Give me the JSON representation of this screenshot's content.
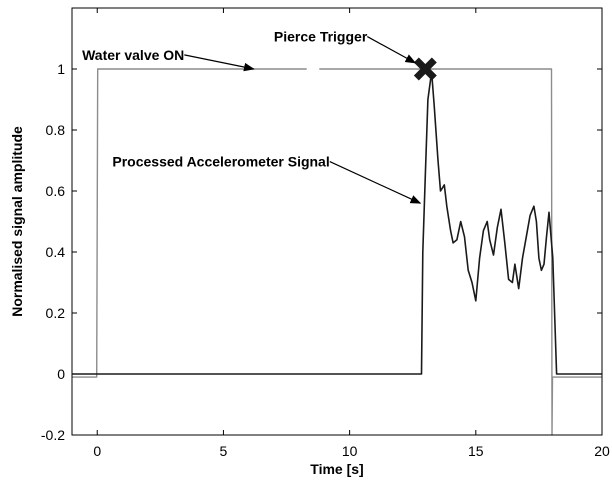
{
  "chart_data": {
    "type": "line",
    "xlabel": "Time [s]",
    "ylabel": "Normalised signal amplitude",
    "xlim": [
      -1,
      20
    ],
    "ylim": [
      -0.2,
      1.2
    ],
    "xticks": [
      0,
      5,
      10,
      15,
      20
    ],
    "yticks": [
      -0.2,
      0,
      0.2,
      0.4,
      0.6,
      0.8,
      1
    ],
    "grid": false,
    "colors": {
      "valve": "#8c8c8c",
      "accel": "#1a1a1a",
      "trigger_marker": "#1a1a1a"
    },
    "series": [
      {
        "x": [
          -1,
          -0.02,
          0,
          0.02,
          8.3,
          8.35,
          8.75,
          8.8,
          18.0,
          18.02,
          18.04,
          18.1,
          20
        ],
        "y": [
          -0.01,
          -0.01,
          0.5,
          1.0,
          1.0,
          null,
          null,
          1.0,
          1.0,
          -0.2,
          -0.01,
          -0.01,
          -0.01
        ]
      },
      {
        "x": [
          -1,
          12.85,
          12.9,
          13.0,
          13.1,
          13.25,
          13.35,
          13.5,
          13.6,
          13.75,
          13.85,
          14.0,
          14.1,
          14.25,
          14.4,
          14.55,
          14.7,
          14.85,
          15.0,
          15.15,
          15.3,
          15.45,
          15.55,
          15.7,
          15.85,
          16.0,
          16.15,
          16.3,
          16.45,
          16.55,
          16.7,
          16.85,
          17.0,
          17.15,
          17.3,
          17.4,
          17.5,
          17.6,
          17.7,
          17.8,
          17.9,
          18.05,
          18.2,
          18.3,
          20
        ],
        "y": [
          0.0,
          0.0,
          0.4,
          0.65,
          0.9,
          0.99,
          0.88,
          0.7,
          0.6,
          0.62,
          0.55,
          0.47,
          0.43,
          0.44,
          0.5,
          0.45,
          0.34,
          0.3,
          0.24,
          0.38,
          0.47,
          0.5,
          0.44,
          0.39,
          0.48,
          0.54,
          0.43,
          0.31,
          0.3,
          0.36,
          0.28,
          0.38,
          0.45,
          0.52,
          0.55,
          0.5,
          0.38,
          0.34,
          0.36,
          0.45,
          0.53,
          0.38,
          0.0,
          0.0,
          0.0
        ]
      }
    ],
    "markers": [
      {
        "x": 13.0,
        "y": 1.0,
        "shape": "x"
      }
    ],
    "annotations": [
      {
        "text": "Water valve ON",
        "text_pos": [
          -0.6,
          1.03
        ],
        "target": [
          6.2,
          1.0
        ]
      },
      {
        "text": "Pierce Trigger",
        "text_pos": [
          7.0,
          1.09
        ],
        "target": [
          12.6,
          1.02
        ]
      },
      {
        "text": "Processed Accelerometer Signal",
        "text_pos": [
          0.6,
          0.68
        ],
        "target": [
          12.8,
          0.56
        ]
      }
    ]
  }
}
